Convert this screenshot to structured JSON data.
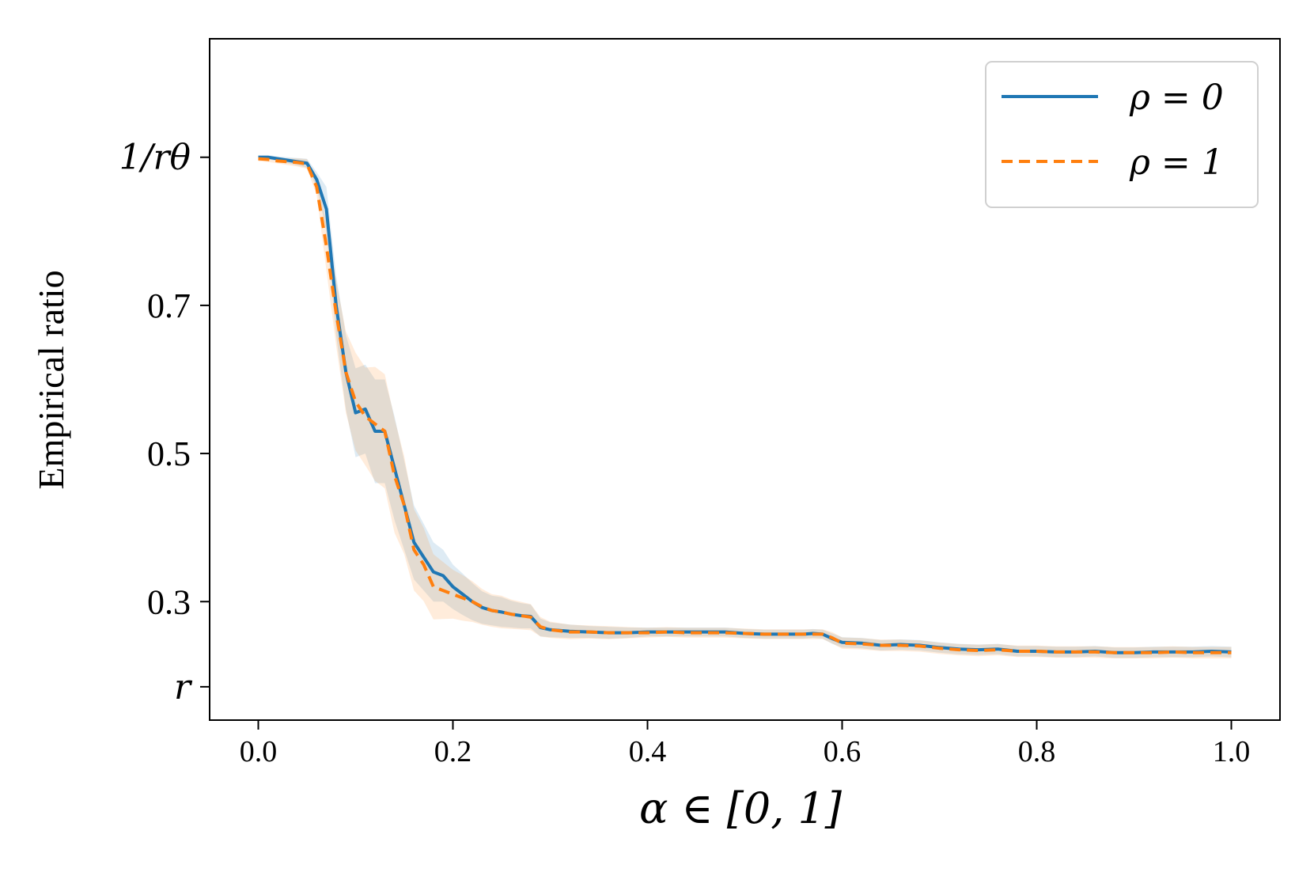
{
  "chart_data": {
    "type": "line",
    "title": "",
    "xlabel": "α ∈ [0, 1]",
    "ylabel": "Empirical ratio",
    "xlim": [
      -0.05,
      1.05
    ],
    "ylim": [
      0.14,
      1.06
    ],
    "x_ticks": [
      {
        "value": 0.0,
        "label": "0.0"
      },
      {
        "value": 0.2,
        "label": "0.2"
      },
      {
        "value": 0.4,
        "label": "0.4"
      },
      {
        "value": 0.6,
        "label": "0.6"
      },
      {
        "value": 0.8,
        "label": "0.8"
      },
      {
        "value": 1.0,
        "label": "1.0"
      }
    ],
    "y_ticks": [
      {
        "value": 0.9,
        "label": "1/rθ"
      },
      {
        "value": 0.7,
        "label": "0.7"
      },
      {
        "value": 0.5,
        "label": "0.5"
      },
      {
        "value": 0.3,
        "label": "0.3"
      },
      {
        "value": 0.185,
        "label": "r"
      }
    ],
    "grid": false,
    "legend_position": "top-right",
    "x": [
      0.0,
      0.01,
      0.02,
      0.03,
      0.04,
      0.05,
      0.06,
      0.07,
      0.08,
      0.09,
      0.1,
      0.11,
      0.12,
      0.13,
      0.14,
      0.15,
      0.16,
      0.17,
      0.18,
      0.19,
      0.2,
      0.21,
      0.22,
      0.23,
      0.24,
      0.25,
      0.26,
      0.27,
      0.28,
      0.29,
      0.3,
      0.32,
      0.34,
      0.36,
      0.38,
      0.4,
      0.42,
      0.44,
      0.46,
      0.48,
      0.5,
      0.52,
      0.54,
      0.56,
      0.57,
      0.58,
      0.59,
      0.6,
      0.62,
      0.64,
      0.66,
      0.68,
      0.7,
      0.72,
      0.74,
      0.76,
      0.78,
      0.8,
      0.82,
      0.84,
      0.86,
      0.88,
      0.9,
      0.92,
      0.94,
      0.96,
      0.98,
      1.0
    ],
    "series": [
      {
        "name": "ρ = 0",
        "color": "#1f77b4",
        "style": "solid",
        "values": [
          0.9,
          0.9,
          0.898,
          0.896,
          0.894,
          0.892,
          0.87,
          0.83,
          0.7,
          0.61,
          0.555,
          0.56,
          0.53,
          0.53,
          0.48,
          0.43,
          0.38,
          0.36,
          0.34,
          0.335,
          0.32,
          0.31,
          0.3,
          0.292,
          0.288,
          0.286,
          0.283,
          0.281,
          0.28,
          0.265,
          0.262,
          0.26,
          0.259,
          0.258,
          0.258,
          0.259,
          0.259,
          0.259,
          0.259,
          0.259,
          0.257,
          0.256,
          0.256,
          0.256,
          0.257,
          0.256,
          0.25,
          0.245,
          0.244,
          0.241,
          0.242,
          0.241,
          0.238,
          0.236,
          0.235,
          0.236,
          0.233,
          0.233,
          0.232,
          0.232,
          0.233,
          0.231,
          0.231,
          0.232,
          0.232,
          0.232,
          0.233,
          0.232
        ]
      },
      {
        "name": "ρ = 1",
        "color": "#ff7f0e",
        "style": "dashed",
        "values": [
          0.898,
          0.897,
          0.895,
          0.894,
          0.893,
          0.891,
          0.86,
          0.78,
          0.69,
          0.61,
          0.57,
          0.55,
          0.54,
          0.53,
          0.47,
          0.43,
          0.37,
          0.35,
          0.32,
          0.315,
          0.31,
          0.305,
          0.3,
          0.293,
          0.288,
          0.286,
          0.283,
          0.281,
          0.279,
          0.266,
          0.262,
          0.259,
          0.259,
          0.258,
          0.258,
          0.258,
          0.259,
          0.258,
          0.258,
          0.258,
          0.257,
          0.256,
          0.256,
          0.256,
          0.256,
          0.256,
          0.251,
          0.244,
          0.243,
          0.241,
          0.241,
          0.24,
          0.237,
          0.235,
          0.234,
          0.235,
          0.233,
          0.233,
          0.232,
          0.232,
          0.232,
          0.231,
          0.231,
          0.231,
          0.232,
          0.231,
          0.231,
          0.231
        ]
      }
    ],
    "band_halfwidth": [
      0.003,
      0.003,
      0.003,
      0.004,
      0.005,
      0.006,
      0.01,
      0.03,
      0.04,
      0.05,
      0.06,
      0.06,
      0.07,
      0.07,
      0.07,
      0.06,
      0.05,
      0.045,
      0.04,
      0.035,
      0.03,
      0.028,
      0.025,
      0.022,
      0.02,
      0.02,
      0.018,
      0.017,
      0.016,
      0.012,
      0.01,
      0.009,
      0.008,
      0.008,
      0.007,
      0.006,
      0.006,
      0.006,
      0.006,
      0.006,
      0.006,
      0.006,
      0.006,
      0.006,
      0.006,
      0.006,
      0.007,
      0.007,
      0.007,
      0.007,
      0.007,
      0.007,
      0.007,
      0.007,
      0.007,
      0.007,
      0.007,
      0.007,
      0.007,
      0.007,
      0.007,
      0.007,
      0.007,
      0.007,
      0.007,
      0.007,
      0.007,
      0.007
    ]
  }
}
